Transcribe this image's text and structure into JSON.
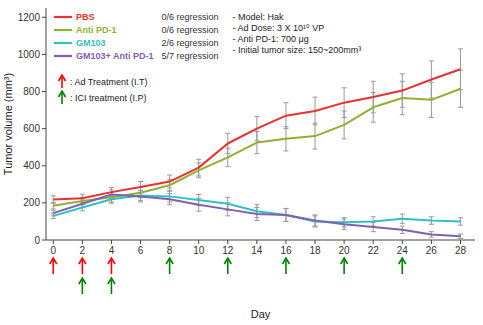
{
  "chart_data": {
    "type": "line",
    "xlabel": "Day",
    "ylabel": "Tumor volume (mm³)",
    "x": [
      0,
      2,
      4,
      6,
      8,
      10,
      12,
      14,
      16,
      18,
      20,
      22,
      24,
      26,
      28
    ],
    "xlim": [
      -0.5,
      29
    ],
    "xticks": [
      0,
      2,
      4,
      6,
      8,
      10,
      12,
      14,
      16,
      18,
      20,
      22,
      24,
      26,
      28
    ],
    "ylim": [
      0,
      1250
    ],
    "yticks": [
      0,
      200,
      400,
      600,
      800,
      1000,
      1200
    ],
    "grid": false,
    "series": [
      {
        "name": "PBS",
        "color": "#e83030",
        "annotation": "0/6 regression",
        "values": [
          218,
          225,
          258,
          285,
          315,
          390,
          520,
          600,
          670,
          695,
          740,
          770,
          805,
          865,
          920
        ],
        "errors": [
          20,
          22,
          25,
          30,
          35,
          45,
          55,
          65,
          70,
          75,
          80,
          85,
          90,
          100,
          110
        ]
      },
      {
        "name": "Anti PD-1",
        "color": "#90b030",
        "annotation": "0/6 regression",
        "values": [
          185,
          210,
          230,
          255,
          295,
          375,
          445,
          525,
          545,
          560,
          620,
          715,
          765,
          755,
          815
        ],
        "errors": [
          18,
          20,
          25,
          28,
          32,
          40,
          50,
          60,
          65,
          70,
          75,
          80,
          90,
          95,
          100
        ]
      },
      {
        "name": "GM103",
        "color": "#30c0c8",
        "annotation": "2/6 regression",
        "values": [
          130,
          175,
          220,
          240,
          235,
          215,
          195,
          155,
          135,
          100,
          95,
          100,
          115,
          105,
          100
        ],
        "errors": [
          15,
          18,
          22,
          28,
          30,
          30,
          35,
          35,
          35,
          30,
          25,
          25,
          25,
          20,
          20
        ]
      },
      {
        "name": "GM103+ Anti PD-1",
        "color": "#8060b0",
        "annotation": "5/7 regression",
        "values": [
          145,
          195,
          245,
          235,
          220,
          190,
          165,
          140,
          135,
          105,
          85,
          70,
          55,
          30,
          20
        ],
        "errors": [
          15,
          20,
          25,
          30,
          30,
          35,
          35,
          35,
          35,
          30,
          28,
          25,
          20,
          15,
          12
        ]
      }
    ],
    "annotations": [
      {
        "text": ": Ad Treatment (I.T)",
        "color": "red",
        "x": [
          0,
          2,
          4
        ]
      },
      {
        "text": ": ICI treatment (I.P)",
        "color": "green",
        "x": [
          2,
          4,
          8,
          12,
          16,
          20,
          24
        ]
      }
    ],
    "info": [
      "- Model: Hak",
      "- Ad Dose: 3 X 10¹⁰ VP",
      "- Anti PD-1: 700 μg",
      "- Initial tumor size: 150~200mm³"
    ]
  }
}
